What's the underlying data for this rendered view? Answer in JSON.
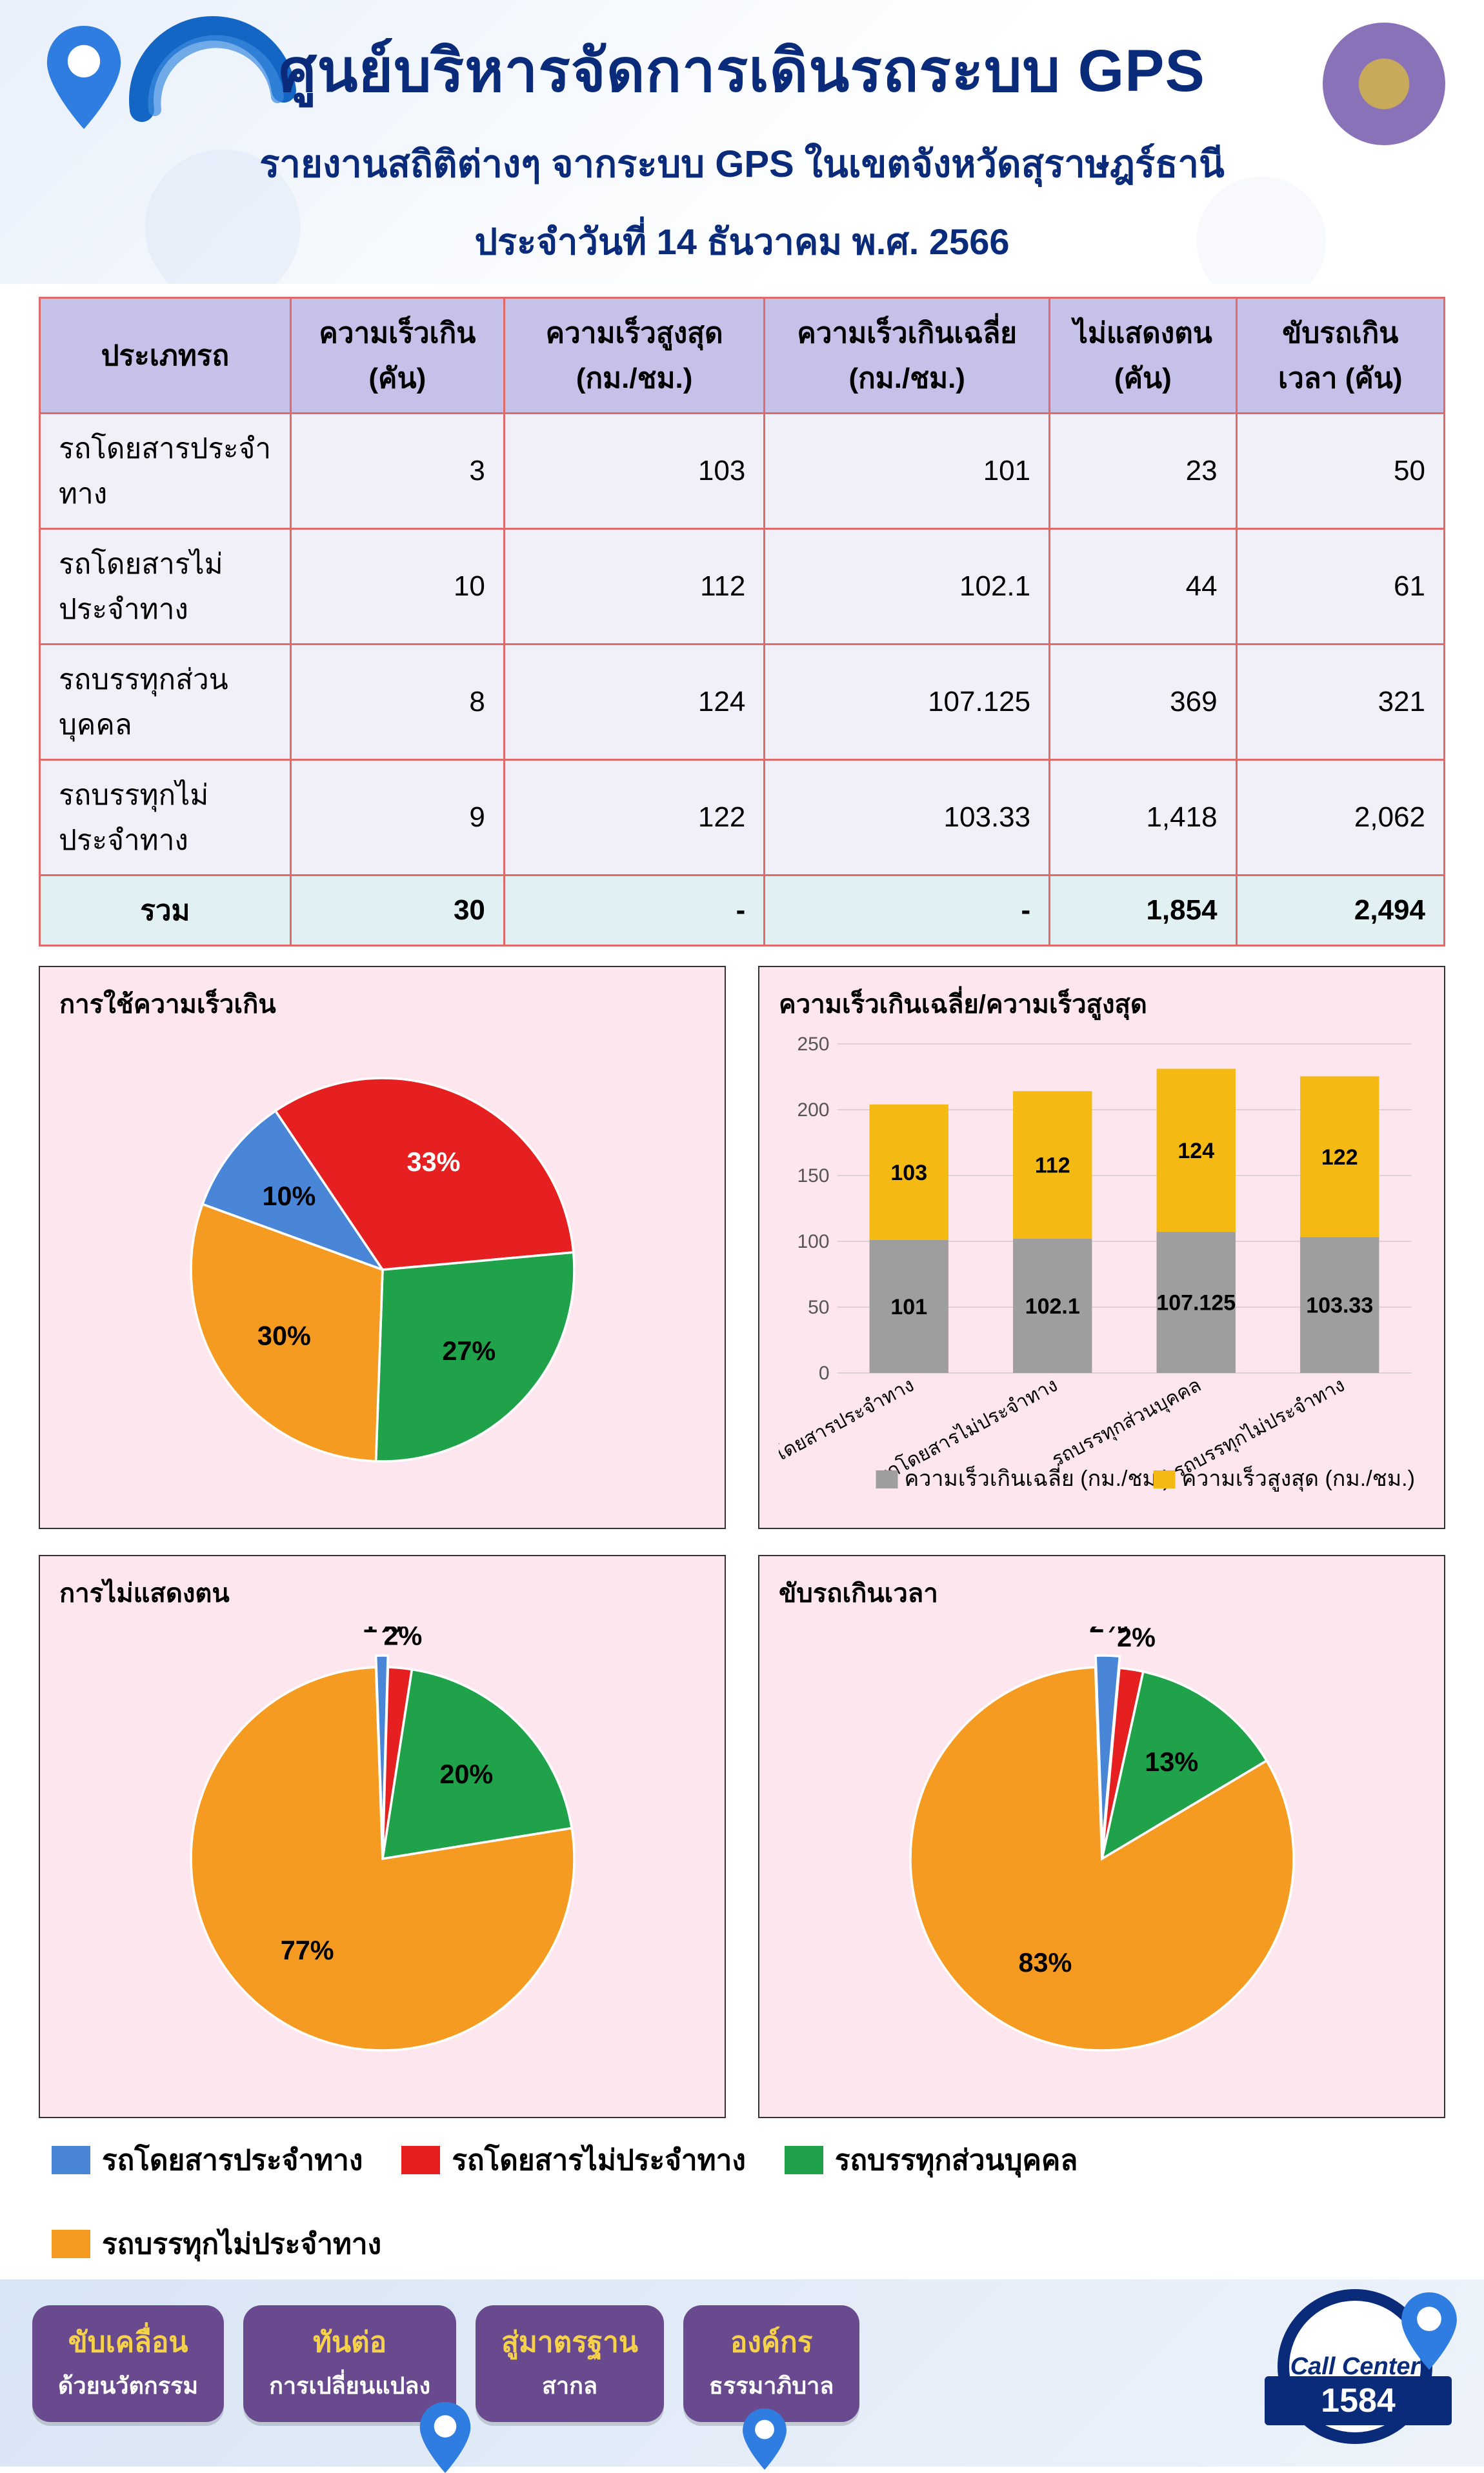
{
  "header": {
    "title": "ศูนย์บริหารจัดการเดินรถระบบ GPS",
    "subtitle": "รายงานสถิติต่างๆ จากระบบ GPS ในเขตจังหวัดสุราษฎร์ธานี",
    "date_line": "ประจำวันที่  14  ธันวาคม พ.ศ. 2566",
    "title_color": "#0a2a7a",
    "bg_gradient_from": "#e8f0fb",
    "bg_gradient_to": "#ffffff"
  },
  "categories": {
    "names": [
      "รถโดยสารประจำทาง",
      "รถโดยสารไม่ประจำทาง",
      "รถบรรทุกส่วนบุคคล",
      "รถบรรทุกไม่ประจำทาง"
    ],
    "colors": [
      "#4a86d8",
      "#e62020",
      "#1fa24a",
      "#f59b22"
    ]
  },
  "table": {
    "header_bg": "#c5c1e8",
    "cell_bg": "#f1eff8",
    "total_bg": "#e1f0f3",
    "border_color": "#e06a6a",
    "columns": [
      "ประเภทรถ",
      "ความเร็วเกิน (คัน)",
      "ความเร็วสูงสุด (กม./ชม.)",
      "ความเร็วเกินเฉลี่ย (กม./ชม.)",
      "ไม่แสดงตน (คัน)",
      "ขับรถเกินเวลา (คัน)"
    ],
    "rows": [
      [
        "รถโดยสารประจำทาง",
        "3",
        "103",
        "101",
        "23",
        "50"
      ],
      [
        "รถโดยสารไม่ประจำทาง",
        "10",
        "112",
        "102.1",
        "44",
        "61"
      ],
      [
        "รถบรรทุกส่วนบุคคล",
        "8",
        "124",
        "107.125",
        "369",
        "321"
      ],
      [
        "รถบรรทุกไม่ประจำทาง",
        "9",
        "122",
        "103.33",
        "1,418",
        "2,062"
      ]
    ],
    "total_row": [
      "รวม",
      "30",
      "-",
      "-",
      "1,854",
      "2,494"
    ]
  },
  "pie_speed": {
    "title": "การใช้ความเร็วเกิน",
    "type": "pie",
    "values": [
      10,
      33,
      27,
      30
    ],
    "labels": [
      "10%",
      "33%",
      "27%",
      "30%"
    ],
    "colors": [
      "#4a86d8",
      "#e62020",
      "#1fa24a",
      "#f59b22"
    ],
    "stroke": "#ffffff",
    "start_angle_deg": 200
  },
  "bar_speed": {
    "title": "ความเร็วเกินเฉลี่ย/ความเร็วสูงสุด",
    "type": "stacked-bar",
    "x_categories": [
      "รถโดยสารประจำทาง",
      "รถโดยสารไม่ประจำทาง",
      "รถบรรทุกส่วนบุคคล",
      "รถบรรทุกไม่ประจำทาง"
    ],
    "series": [
      {
        "name": "ความเร็วเกินเฉลี่ย (กม./ชม.)",
        "color": "#9e9e9e",
        "values": [
          101,
          102.1,
          107.125,
          103.33
        ],
        "labels": [
          "101",
          "102.1",
          "107.125",
          "103.33"
        ]
      },
      {
        "name": "ความเร็วสูงสุด (กม./ชม.)",
        "color": "#f5b914",
        "values": [
          103,
          112,
          124,
          122
        ],
        "labels": [
          "103",
          "112",
          "124",
          "122"
        ]
      }
    ],
    "ylim": [
      0,
      250
    ],
    "ytick_step": 50,
    "grid_color": "#bfbfbf",
    "label_fontsize": 30,
    "bar_width": 0.55
  },
  "pie_noshow": {
    "title": "การไม่แสดงตน",
    "type": "pie",
    "values": [
      1,
      2,
      20,
      77
    ],
    "labels": [
      "1%",
      "2%",
      "20%",
      "77%"
    ],
    "colors": [
      "#4a86d8",
      "#e62020",
      "#1fa24a",
      "#f59b22"
    ],
    "stroke": "#ffffff",
    "start_angle_deg": 268,
    "explode_index": 0
  },
  "pie_overtime": {
    "title": "ขับรถเกินเวลา",
    "type": "pie",
    "values": [
      2,
      2,
      13,
      83
    ],
    "labels": [
      "2%",
      "2%",
      "13%",
      "83%"
    ],
    "colors": [
      "#4a86d8",
      "#e62020",
      "#1fa24a",
      "#f59b22"
    ],
    "stroke": "#ffffff",
    "start_angle_deg": 268,
    "explode_index": 0
  },
  "legend_title": "category-legend",
  "footer": {
    "bg_from": "#d8e5f5",
    "bg_to": "#eef3fb",
    "pill_bg": "#6a4a8f",
    "pill_accent": "#f5d24a",
    "pills": [
      {
        "l1": "ขับเคลื่อน",
        "l2": "ด้วยนวัตกรรม"
      },
      {
        "l1": "ทันต่อ",
        "l2": "การเปลี่ยนแปลง"
      },
      {
        "l1": "สู่มาตรฐาน",
        "l2": "สากล"
      },
      {
        "l1": "องค์กร",
        "l2": "ธรรมาภิบาล"
      }
    ],
    "callcenter": {
      "label": "Call Center",
      "number": "1584",
      "ring": "#0a2a7a"
    }
  }
}
